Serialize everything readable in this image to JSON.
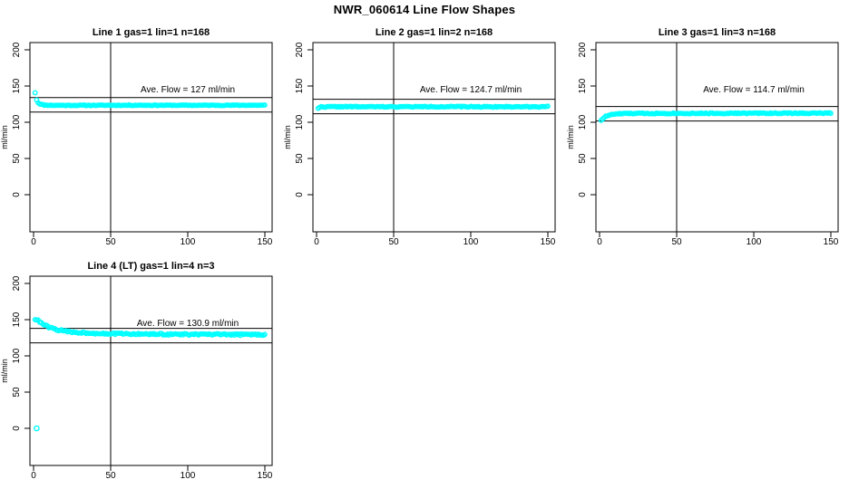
{
  "figure": {
    "title": "NWR_060614  Line Flow Shapes"
  },
  "chart_data": {
    "type": "scatter",
    "title": "NWR_060614  Line Flow Shapes",
    "layout": {
      "grid": "2 rows x 3 cols, panels in cells (0,0),(0,1),(0,2),(1,0); cells (1,1),(1,2) empty",
      "legend": "none",
      "grid_lines": "off",
      "xlim": [
        0,
        150
      ],
      "ylim": [
        0,
        200
      ]
    },
    "marker_color": "#00FFFF",
    "axis_color": "#000000",
    "background_color": "#FFFFFF",
    "panels": [
      {
        "title": "Line 1 gas=1 lin=1  n=168",
        "annotation": "Ave. Flow =  127  ml/min",
        "ave_flow": 127,
        "ylabel": "ml/min",
        "xticks": [
          0,
          50,
          100,
          150
        ],
        "yticks": [
          0,
          50,
          100,
          150,
          200
        ],
        "vline_x": 50,
        "hlines": [
          134,
          114
        ],
        "series_anchors": [
          [
            1,
            141
          ],
          [
            2,
            131
          ],
          [
            3,
            127
          ],
          [
            4,
            125.5
          ],
          [
            5,
            124.5
          ],
          [
            7,
            123.8
          ],
          [
            10,
            123.5
          ],
          [
            20,
            123.3
          ],
          [
            40,
            123.4
          ],
          [
            70,
            123.5
          ],
          [
            100,
            123.4
          ],
          [
            130,
            123.5
          ],
          [
            150,
            123.5
          ]
        ],
        "outlier_points": [],
        "x_start": 1,
        "x_end": 150,
        "jitter": 0.5,
        "seed": 11
      },
      {
        "title": "Line 2 gas=1 lin=2 n=168",
        "annotation": "Ave. Flow =  124.7  ml/min",
        "ave_flow": 124.7,
        "ylabel": "ml/min",
        "xticks": [
          0,
          50,
          100,
          150
        ],
        "yticks": [
          0,
          50,
          100,
          150,
          200
        ],
        "vline_x": 50,
        "hlines": [
          131.7,
          111.7
        ],
        "series_anchors": [
          [
            1,
            119.5
          ],
          [
            2,
            120.8
          ],
          [
            3,
            121.2
          ],
          [
            6,
            121.4
          ],
          [
            15,
            121.5
          ],
          [
            40,
            121.4
          ],
          [
            80,
            121.5
          ],
          [
            120,
            121.4
          ],
          [
            150,
            121.5
          ]
        ],
        "outlier_points": [],
        "x_start": 1,
        "x_end": 150,
        "jitter": 0.6,
        "seed": 22
      },
      {
        "title": "Line 3 gas=1 lin=3 n=168",
        "annotation": "Ave. Flow =  114.7  ml/min",
        "ave_flow": 114.7,
        "ylabel": "ml/min",
        "xticks": [
          0,
          50,
          100,
          150
        ],
        "yticks": [
          0,
          50,
          100,
          150,
          200
        ],
        "vline_x": 50,
        "hlines": [
          121.7,
          101.7
        ],
        "series_anchors": [
          [
            1,
            103
          ],
          [
            2,
            104.8
          ],
          [
            3,
            106.5
          ],
          [
            4,
            108
          ],
          [
            6,
            109.8
          ],
          [
            9,
            111
          ],
          [
            13,
            111.8
          ],
          [
            20,
            112.1
          ],
          [
            45,
            112.3
          ],
          [
            80,
            112.4
          ],
          [
            120,
            112.5
          ],
          [
            150,
            112.5
          ]
        ],
        "outlier_points": [],
        "x_start": 1,
        "x_end": 150,
        "jitter": 0.7,
        "seed": 33
      },
      {
        "title": "Line 4 (LT) gas=1 lin=4 n=3",
        "annotation": "Ave. Flow =  130.9  ml/min",
        "ave_flow": 130.9,
        "ylabel": "ml/min",
        "xticks": [
          0,
          50,
          100,
          150
        ],
        "yticks": [
          0,
          50,
          100,
          150,
          200
        ],
        "vline_x": 50,
        "hlines": [
          137.9,
          117.9
        ],
        "series_anchors": [
          [
            1,
            150.5
          ],
          [
            2,
            150
          ],
          [
            3,
            148.5
          ],
          [
            4,
            147
          ],
          [
            5,
            145.5
          ],
          [
            6,
            144
          ],
          [
            8,
            141.5
          ],
          [
            10,
            139.5
          ],
          [
            13,
            137.5
          ],
          [
            16,
            135.8
          ],
          [
            20,
            134.2
          ],
          [
            25,
            133
          ],
          [
            30,
            132.2
          ],
          [
            38,
            131.4
          ],
          [
            50,
            130.7
          ],
          [
            65,
            130.2
          ],
          [
            80,
            129.9
          ],
          [
            100,
            129.7
          ],
          [
            120,
            129.5
          ],
          [
            150,
            129.4
          ]
        ],
        "outlier_points": [
          [
            2,
            0
          ]
        ],
        "x_start": 1,
        "x_end": 150,
        "jitter": 1.1,
        "seed": 44
      }
    ]
  }
}
